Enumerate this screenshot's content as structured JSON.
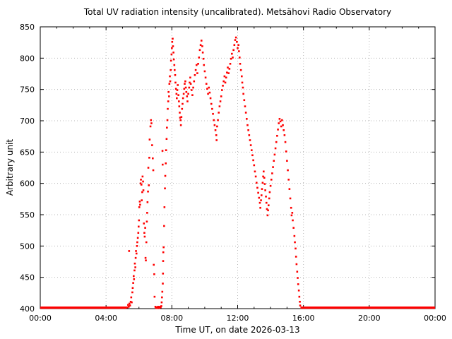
{
  "chart_data": {
    "type": "scatter",
    "title": "Total UV radiation intensity (uncalibrated). Metsähovi Radio Observatory",
    "xlabel": "Time UT, on date 2026-03-13",
    "ylabel": "Arbitrary unit",
    "point_color": "#ff0000",
    "grid": "dotted",
    "x_axis": {
      "min_hours": 0,
      "max_hours": 24,
      "major_tick_hours": 4,
      "minor_tick_hours": 1,
      "tick_values_hours": [
        0,
        4,
        8,
        12,
        16,
        20,
        24
      ],
      "tick_labels": [
        "00:00",
        "04:00",
        "08:00",
        "12:00",
        "16:00",
        "20:00",
        "00:00"
      ]
    },
    "y_axis": {
      "min": 400,
      "max": 850,
      "major_tick": 50,
      "tick_values": [
        400,
        450,
        500,
        550,
        600,
        650,
        700,
        750,
        800,
        850
      ],
      "tick_labels": [
        "400",
        "450",
        "500",
        "550",
        "600",
        "650",
        "700",
        "750",
        "800",
        "850"
      ]
    },
    "baseline": {
      "value": 400,
      "segments_hours": [
        [
          0.0,
          5.25
        ],
        [
          15.82,
          24.0
        ]
      ]
    },
    "points": [
      [
        5.3,
        402
      ],
      [
        5.34,
        406
      ],
      [
        5.38,
        403
      ],
      [
        5.4,
        492
      ],
      [
        5.42,
        408
      ],
      [
        5.46,
        405
      ],
      [
        5.5,
        411
      ],
      [
        5.53,
        418
      ],
      [
        5.56,
        410
      ],
      [
        5.6,
        426
      ],
      [
        5.62,
        433
      ],
      [
        5.65,
        441
      ],
      [
        5.68,
        452
      ],
      [
        5.7,
        447
      ],
      [
        5.73,
        461
      ],
      [
        5.75,
        472
      ],
      [
        5.78,
        466
      ],
      [
        5.8,
        481
      ],
      [
        5.82,
        492
      ],
      [
        5.85,
        488
      ],
      [
        5.88,
        500
      ],
      [
        5.9,
        506
      ],
      [
        5.93,
        513
      ],
      [
        5.96,
        521
      ],
      [
        5.98,
        531
      ],
      [
        6.0,
        541
      ],
      [
        6.02,
        562
      ],
      [
        6.05,
        571
      ],
      [
        6.07,
        566
      ],
      [
        6.1,
        600
      ],
      [
        6.12,
        606
      ],
      [
        6.15,
        598
      ],
      [
        6.17,
        573
      ],
      [
        6.2,
        586
      ],
      [
        6.22,
        611
      ],
      [
        6.25,
        603
      ],
      [
        6.27,
        589
      ],
      [
        6.3,
        536
      ],
      [
        6.33,
        521
      ],
      [
        6.35,
        515
      ],
      [
        6.38,
        529
      ],
      [
        6.4,
        481
      ],
      [
        6.42,
        477
      ],
      [
        6.45,
        506
      ],
      [
        6.48,
        539
      ],
      [
        6.5,
        553
      ],
      [
        6.52,
        570
      ],
      [
        6.55,
        587
      ],
      [
        6.57,
        625
      ],
      [
        6.6,
        597
      ],
      [
        6.63,
        641
      ],
      [
        6.65,
        670
      ],
      [
        6.7,
        691
      ],
      [
        6.73,
        701
      ],
      [
        6.76,
        696
      ],
      [
        6.8,
        661
      ],
      [
        6.84,
        640
      ],
      [
        6.87,
        621
      ],
      [
        6.9,
        470
      ],
      [
        6.93,
        455
      ],
      [
        6.95,
        419
      ],
      [
        7.0,
        403
      ],
      [
        7.04,
        401
      ],
      [
        7.08,
        402
      ],
      [
        7.12,
        401
      ],
      [
        7.16,
        403
      ],
      [
        7.2,
        402
      ],
      [
        7.24,
        401
      ],
      [
        7.28,
        403
      ],
      [
        7.32,
        402
      ],
      [
        7.36,
        404
      ],
      [
        7.38,
        410
      ],
      [
        7.4,
        418
      ],
      [
        7.42,
        427
      ],
      [
        7.43,
        652
      ],
      [
        7.44,
        630
      ],
      [
        7.45,
        440
      ],
      [
        7.46,
        456
      ],
      [
        7.47,
        476
      ],
      [
        7.48,
        490
      ],
      [
        7.5,
        498
      ],
      [
        7.53,
        532
      ],
      [
        7.55,
        562
      ],
      [
        7.58,
        592
      ],
      [
        7.6,
        612
      ],
      [
        7.63,
        632
      ],
      [
        7.65,
        653
      ],
      [
        7.68,
        671
      ],
      [
        7.7,
        689
      ],
      [
        7.73,
        701
      ],
      [
        7.75,
        719
      ],
      [
        7.78,
        731
      ],
      [
        7.8,
        746
      ],
      [
        7.83,
        739
      ],
      [
        7.85,
        759
      ],
      [
        7.88,
        771
      ],
      [
        7.9,
        763
      ],
      [
        7.93,
        781
      ],
      [
        7.95,
        796
      ],
      [
        7.98,
        806
      ],
      [
        8.0,
        816
      ],
      [
        8.02,
        826
      ],
      [
        8.05,
        831
      ],
      [
        8.07,
        819
      ],
      [
        8.1,
        809
      ],
      [
        8.12,
        798
      ],
      [
        8.15,
        789
      ],
      [
        8.17,
        781
      ],
      [
        8.2,
        773
      ],
      [
        8.22,
        761
      ],
      [
        8.25,
        751
      ],
      [
        8.28,
        743
      ],
      [
        8.3,
        736
      ],
      [
        8.33,
        749
      ],
      [
        8.36,
        757
      ],
      [
        8.4,
        741
      ],
      [
        8.43,
        731
      ],
      [
        8.45,
        723
      ],
      [
        8.48,
        713
      ],
      [
        8.5,
        705
      ],
      [
        8.53,
        701
      ],
      [
        8.55,
        693
      ],
      [
        8.58,
        706
      ],
      [
        8.62,
        719
      ],
      [
        8.65,
        727
      ],
      [
        8.68,
        736
      ],
      [
        8.72,
        743
      ],
      [
        8.75,
        751
      ],
      [
        8.78,
        759
      ],
      [
        8.82,
        763
      ],
      [
        8.85,
        753
      ],
      [
        8.88,
        746
      ],
      [
        8.92,
        739
      ],
      [
        8.95,
        731
      ],
      [
        9.0,
        743
      ],
      [
        9.05,
        753
      ],
      [
        9.08,
        761
      ],
      [
        9.12,
        769
      ],
      [
        9.15,
        759
      ],
      [
        9.2,
        749
      ],
      [
        9.25,
        741
      ],
      [
        9.3,
        753
      ],
      [
        9.35,
        763
      ],
      [
        9.4,
        773
      ],
      [
        9.45,
        781
      ],
      [
        9.5,
        789
      ],
      [
        9.55,
        776
      ],
      [
        9.6,
        791
      ],
      [
        9.65,
        801
      ],
      [
        9.7,
        813
      ],
      [
        9.75,
        821
      ],
      [
        9.8,
        828
      ],
      [
        9.85,
        819
      ],
      [
        9.88,
        809
      ],
      [
        9.92,
        799
      ],
      [
        9.95,
        789
      ],
      [
        10.0,
        779
      ],
      [
        10.05,
        769
      ],
      [
        10.1,
        759
      ],
      [
        10.15,
        751
      ],
      [
        10.2,
        743
      ],
      [
        10.25,
        753
      ],
      [
        10.3,
        745
      ],
      [
        10.35,
        736
      ],
      [
        10.4,
        727
      ],
      [
        10.45,
        719
      ],
      [
        10.5,
        711
      ],
      [
        10.55,
        701
      ],
      [
        10.6,
        693
      ],
      [
        10.65,
        685
      ],
      [
        10.7,
        677
      ],
      [
        10.72,
        669
      ],
      [
        10.75,
        691
      ],
      [
        10.8,
        701
      ],
      [
        10.85,
        713
      ],
      [
        10.9,
        723
      ],
      [
        10.95,
        731
      ],
      [
        11.0,
        739
      ],
      [
        11.05,
        749
      ],
      [
        11.1,
        756
      ],
      [
        11.15,
        763
      ],
      [
        11.2,
        771
      ],
      [
        11.25,
        761
      ],
      [
        11.3,
        769
      ],
      [
        11.35,
        777
      ],
      [
        11.4,
        785
      ],
      [
        11.45,
        776
      ],
      [
        11.5,
        783
      ],
      [
        11.55,
        791
      ],
      [
        11.6,
        799
      ],
      [
        11.65,
        807
      ],
      [
        11.7,
        801
      ],
      [
        11.75,
        813
      ],
      [
        11.8,
        821
      ],
      [
        11.85,
        829
      ],
      [
        11.9,
        833
      ],
      [
        11.95,
        826
      ],
      [
        12.0,
        816
      ],
      [
        12.05,
        821
      ],
      [
        12.08,
        811
      ],
      [
        12.12,
        801
      ],
      [
        12.15,
        791
      ],
      [
        12.2,
        781
      ],
      [
        12.25,
        771
      ],
      [
        12.28,
        761
      ],
      [
        12.32,
        753
      ],
      [
        12.35,
        743
      ],
      [
        12.4,
        733
      ],
      [
        12.45,
        723
      ],
      [
        12.5,
        713
      ],
      [
        12.55,
        703
      ],
      [
        12.6,
        693
      ],
      [
        12.65,
        685
      ],
      [
        12.7,
        677
      ],
      [
        12.75,
        669
      ],
      [
        12.8,
        661
      ],
      [
        12.85,
        653
      ],
      [
        12.9,
        645
      ],
      [
        12.95,
        637
      ],
      [
        13.0,
        629
      ],
      [
        13.05,
        619
      ],
      [
        13.1,
        611
      ],
      [
        13.15,
        601
      ],
      [
        13.2,
        593
      ],
      [
        13.25,
        585
      ],
      [
        13.3,
        577
      ],
      [
        13.35,
        569
      ],
      [
        13.38,
        561
      ],
      [
        13.42,
        573
      ],
      [
        13.45,
        581
      ],
      [
        13.48,
        591
      ],
      [
        13.52,
        601
      ],
      [
        13.55,
        611
      ],
      [
        13.58,
        619
      ],
      [
        13.62,
        609
      ],
      [
        13.65,
        599
      ],
      [
        13.68,
        589
      ],
      [
        13.72,
        579
      ],
      [
        13.75,
        569
      ],
      [
        13.78,
        559
      ],
      [
        13.82,
        549
      ],
      [
        13.85,
        557
      ],
      [
        13.88,
        565
      ],
      [
        13.92,
        576
      ],
      [
        13.95,
        586
      ],
      [
        14.0,
        596
      ],
      [
        14.05,
        606
      ],
      [
        14.1,
        616
      ],
      [
        14.15,
        626
      ],
      [
        14.2,
        636
      ],
      [
        14.25,
        646
      ],
      [
        14.3,
        656
      ],
      [
        14.35,
        666
      ],
      [
        14.4,
        676
      ],
      [
        14.45,
        686
      ],
      [
        14.5,
        696
      ],
      [
        14.55,
        703
      ],
      [
        14.6,
        699
      ],
      [
        14.65,
        691
      ],
      [
        14.7,
        701
      ],
      [
        14.75,
        693
      ],
      [
        14.8,
        685
      ],
      [
        14.85,
        677
      ],
      [
        14.9,
        666
      ],
      [
        14.95,
        651
      ],
      [
        15.0,
        636
      ],
      [
        15.05,
        621
      ],
      [
        15.1,
        606
      ],
      [
        15.15,
        591
      ],
      [
        15.2,
        576
      ],
      [
        15.25,
        561
      ],
      [
        15.28,
        549
      ],
      [
        15.32,
        553
      ],
      [
        15.35,
        541
      ],
      [
        15.4,
        529
      ],
      [
        15.45,
        516
      ],
      [
        15.48,
        506
      ],
      [
        15.52,
        496
      ],
      [
        15.55,
        483
      ],
      [
        15.58,
        471
      ],
      [
        15.62,
        459
      ],
      [
        15.65,
        449
      ],
      [
        15.68,
        439
      ],
      [
        15.72,
        429
      ],
      [
        15.75,
        419
      ],
      [
        15.78,
        411
      ],
      [
        15.8,
        405
      ]
    ]
  }
}
